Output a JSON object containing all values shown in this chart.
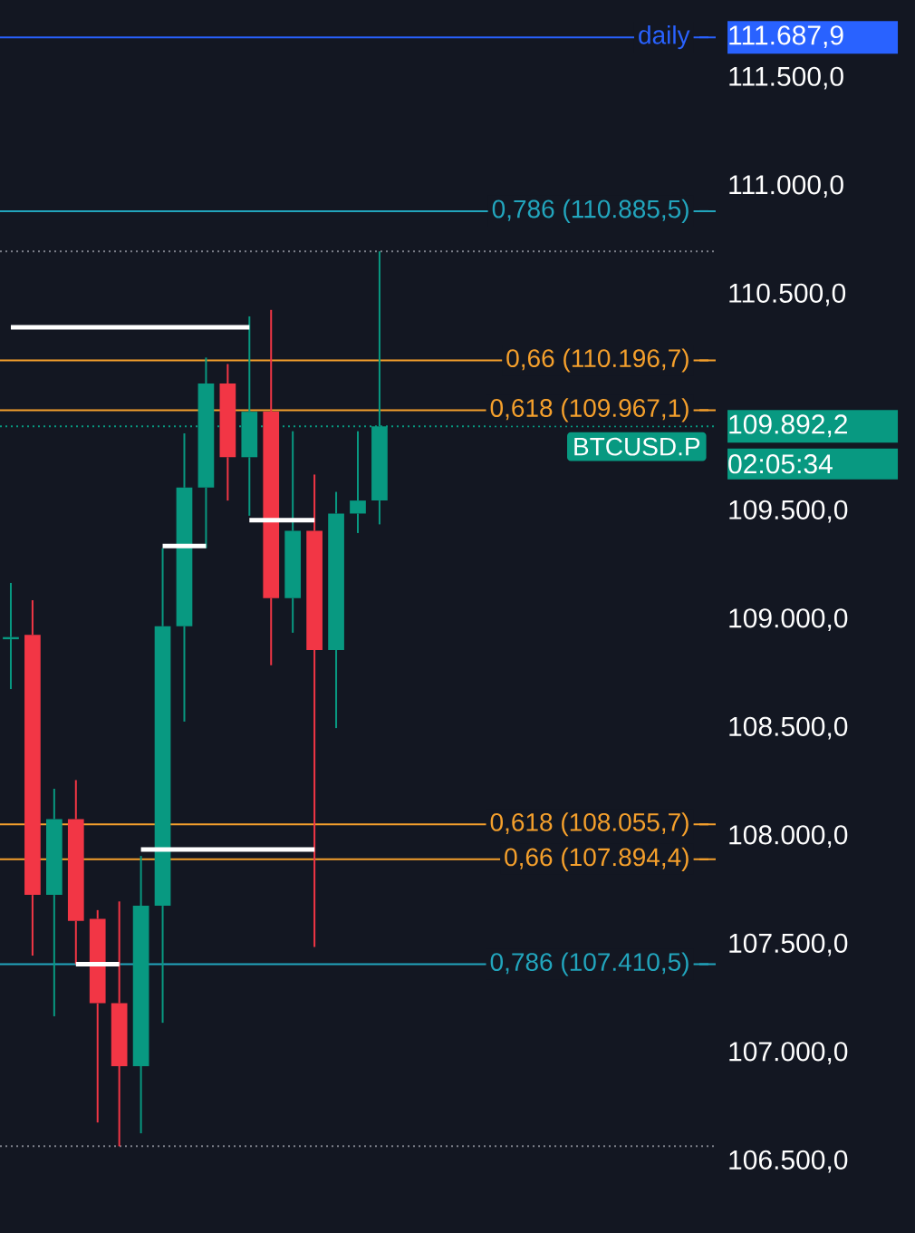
{
  "chart_data": {
    "type": "candlestick",
    "categories": [
      null,
      null,
      null,
      null,
      null,
      null,
      null,
      null,
      null,
      null,
      null,
      null,
      null,
      null,
      null,
      null,
      null,
      null,
      null,
      null,
      null,
      null,
      null,
      null,
      null,
      null,
      null,
      null,
      null,
      null,
      null,
      null,
      null
    ],
    "ohlc": [
      [
        108910,
        109170,
        108680,
        108920
      ],
      [
        108930,
        109090,
        107450,
        107730
      ],
      [
        107730,
        108220,
        107170,
        108080
      ],
      [
        108080,
        108260,
        107410,
        107610
      ],
      [
        107620,
        107660,
        106680,
        107230
      ],
      [
        107230,
        107700,
        106570,
        106940
      ],
      [
        106940,
        107910,
        106630,
        107680
      ],
      [
        107680,
        109330,
        107140,
        108970
      ],
      [
        108970,
        109860,
        108530,
        109610
      ],
      [
        109610,
        110210,
        109330,
        110090
      ],
      [
        110090,
        110180,
        109550,
        109750
      ],
      [
        109750,
        110400,
        109480,
        109960
      ],
      [
        109960,
        110430,
        108790,
        109100
      ],
      [
        109100,
        109870,
        108940,
        109410
      ],
      [
        109410,
        109670,
        107490,
        108860
      ],
      [
        108860,
        109590,
        108500,
        109490
      ],
      [
        109490,
        109870,
        109400,
        109550
      ],
      [
        109550,
        110700,
        109440,
        109892.2
      ],
      null,
      null,
      null,
      null,
      null,
      null,
      null,
      null,
      null,
      null,
      null,
      null,
      null,
      null,
      null
    ],
    "colors": [
      "#089981",
      "#f23645",
      "#089981",
      "#f23645",
      "#f23645",
      "#f23645",
      "#089981",
      "#089981",
      "#089981",
      "#089981",
      "#f23645",
      "#089981",
      "#f23645",
      "#089981",
      "#f23645",
      "#089981",
      "#089981",
      "#089981",
      null,
      null,
      null,
      null,
      null,
      null,
      null,
      null,
      null,
      null,
      null,
      null,
      null,
      null,
      null
    ],
    "series": [
      {
        "type": "line",
        "color": "#ffffff",
        "values": [
          110350,
          110350,
          110350,
          110350,
          110350,
          110350,
          110350,
          110350,
          110350,
          110350,
          110350,
          110350,
          null,
          null,
          null,
          null,
          null,
          null,
          null,
          null,
          null,
          null,
          null,
          null,
          null,
          null,
          null,
          null,
          null,
          null,
          null,
          null,
          null
        ]
      },
      {
        "type": "line",
        "color": "#ffffff",
        "values": [
          null,
          null,
          null,
          null,
          null,
          null,
          null,
          109340,
          109340,
          109340,
          null,
          null,
          null,
          null,
          null,
          null,
          null,
          null,
          null,
          null,
          null,
          null,
          null,
          null,
          null,
          null,
          null,
          null,
          null,
          null,
          null,
          null,
          null
        ]
      },
      {
        "type": "line",
        "color": "#ffffff",
        "values": [
          null,
          null,
          null,
          null,
          null,
          null,
          null,
          null,
          null,
          null,
          null,
          109460,
          109460,
          109460,
          109460,
          null,
          null,
          null,
          null,
          null,
          null,
          null,
          null,
          null,
          null,
          null,
          null,
          null,
          null,
          null,
          null,
          null,
          null
        ]
      },
      {
        "type": "line",
        "color": "#ffffff",
        "values": [
          null,
          null,
          null,
          null,
          null,
          null,
          107940,
          107940,
          107940,
          107940,
          107940,
          107940,
          107940,
          107940,
          107940,
          null,
          null,
          null,
          null,
          null,
          null,
          null,
          null,
          null,
          null,
          null,
          null,
          null,
          null,
          null,
          null,
          null,
          null
        ]
      },
      {
        "type": "line",
        "color": "#ffffff",
        "values": [
          null,
          null,
          null,
          107410,
          107410,
          107410,
          null,
          null,
          null,
          null,
          null,
          null,
          null,
          null,
          null,
          null,
          null,
          null,
          null,
          null,
          null,
          null,
          null,
          null,
          null,
          null,
          null,
          null,
          null,
          null,
          null,
          null,
          null
        ]
      }
    ],
    "ylim": [
      106170,
      111860
    ],
    "yticks": [
      {
        "value": 106500,
        "label": "106.500,0"
      },
      {
        "value": 107000,
        "label": "107.000,0"
      },
      {
        "value": 107500,
        "label": "107.500,0"
      },
      {
        "value": 108000,
        "label": "108.000,0"
      },
      {
        "value": 108500,
        "label": "108.500,0"
      },
      {
        "value": 109000,
        "label": "109.000,0"
      },
      {
        "value": 109500,
        "label": "109.500,0"
      },
      {
        "value": 110500,
        "label": "110.500,0"
      },
      {
        "value": 111000,
        "label": "111.000,0"
      },
      {
        "value": 111500,
        "label": "111.500,0"
      },
      {
        "value": 111687.9,
        "label": "111.687,9"
      },
      {
        "value": 109892.2,
        "label": "109.892,2"
      }
    ],
    "tick_labels": "y",
    "ref_lines": [
      {
        "axis": "y",
        "value": 111687.9,
        "label": "daily",
        "color": "#2962ff",
        "line_style": "solid"
      },
      {
        "axis": "y",
        "value": 110885.5,
        "label": "0,786 (110.885,5)",
        "color": "#22a5bd",
        "line_style": "solid"
      },
      {
        "axis": "y",
        "value": 110196.7,
        "label": "0,66 (110.196,7)",
        "color": "#f5a02c",
        "line_style": "solid"
      },
      {
        "axis": "y",
        "value": 109967.1,
        "label": "0,618 (109.967,1)",
        "color": "#f5a02c",
        "line_style": "solid"
      },
      {
        "axis": "y",
        "value": 108055.7,
        "label": "0,618 (108.055,7)",
        "color": "#f5a02c",
        "line_style": "solid"
      },
      {
        "axis": "y",
        "value": 107894.4,
        "label": "0,66 (107.894,4)",
        "color": "#f5a02c",
        "line_style": "solid"
      },
      {
        "axis": "y",
        "value": 107410.5,
        "label": "0,786 (107.410,5)",
        "color": "#22a5bd",
        "line_style": "solid"
      },
      {
        "axis": "y",
        "value": 109892.2,
        "label": "BTCUSD.P",
        "color": "#089981",
        "line_style": "dotted"
      },
      {
        "axis": "y",
        "value": 110700,
        "color": "#7b7e88",
        "line_style": "dotted"
      },
      {
        "axis": "y",
        "value": 106570,
        "color": "#7b7e88",
        "line_style": "dotted"
      }
    ],
    "annotations": [
      "02:05:34"
    ]
  }
}
